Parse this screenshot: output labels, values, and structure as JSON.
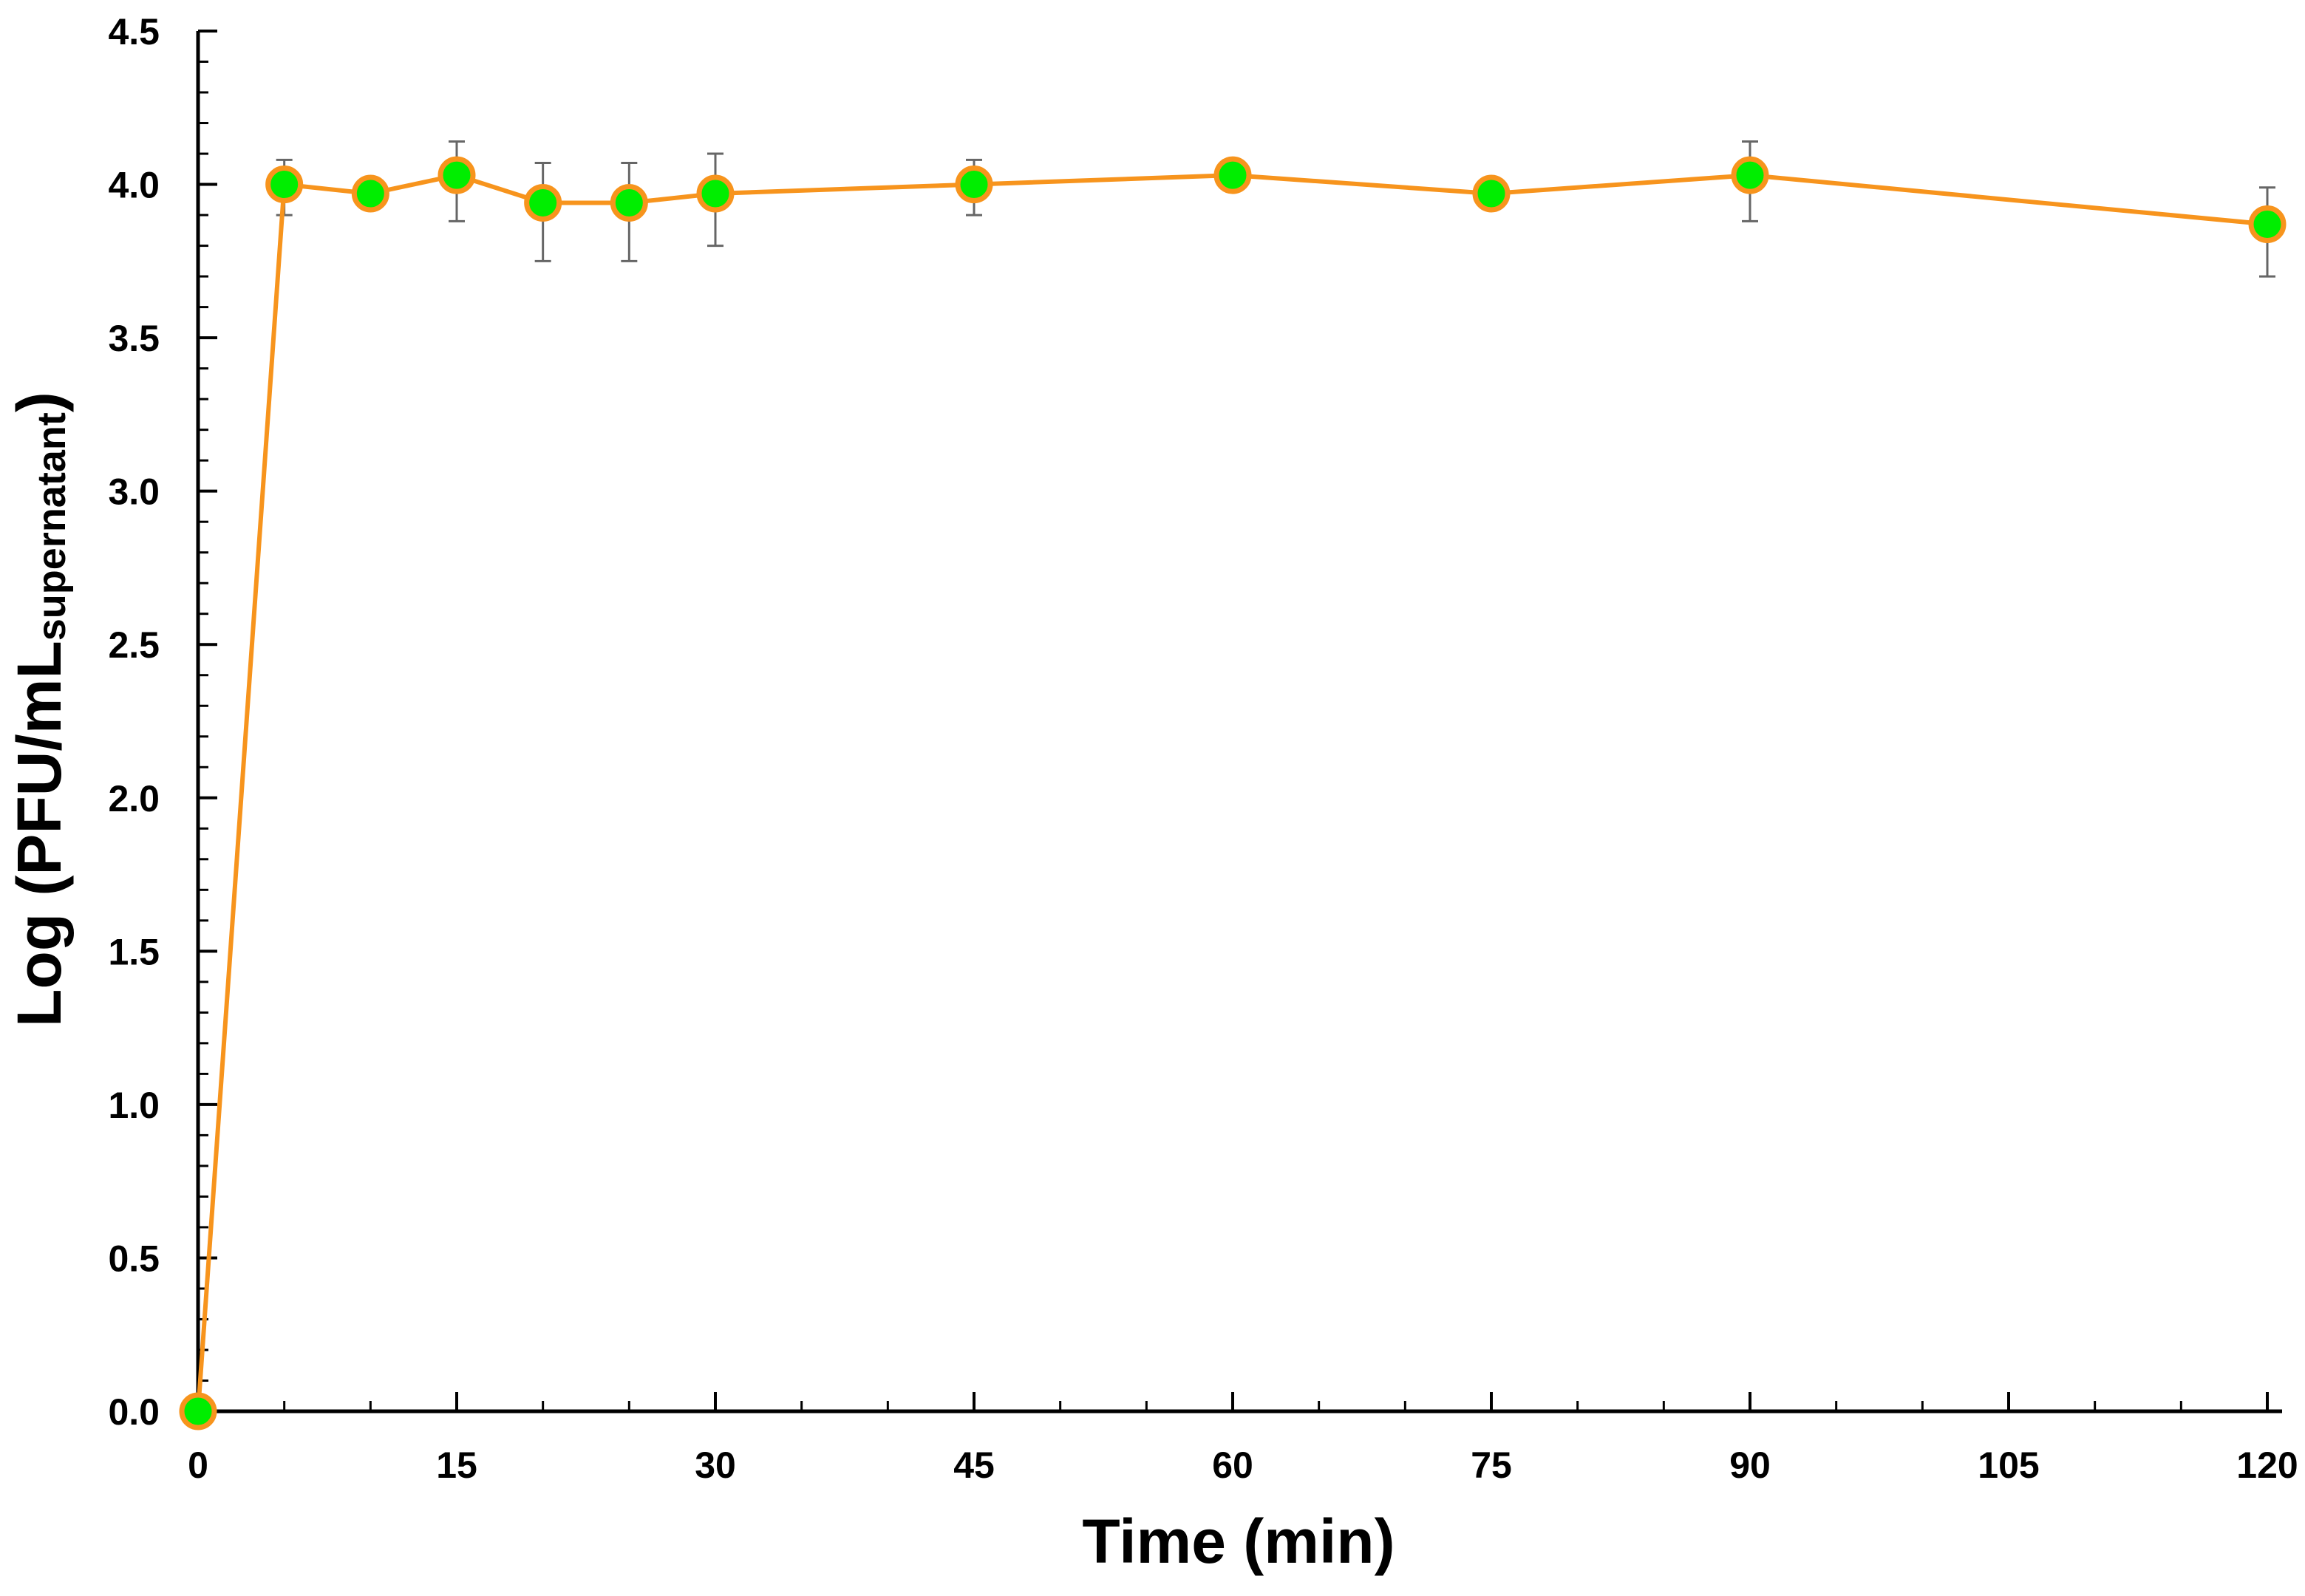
{
  "chart_data": {
    "type": "line",
    "xlabel": "Time (min)",
    "ylabel_main": "Log (PFU/mL",
    "ylabel_sub": "supernatant",
    "ylabel_close": ")",
    "xlim": [
      0,
      120
    ],
    "ylim": [
      0,
      4.5
    ],
    "x_ticks": [
      0,
      15,
      30,
      45,
      60,
      75,
      90,
      105,
      120
    ],
    "x_tick_labels": [
      "0",
      "15",
      "30",
      "45",
      "60",
      "75",
      "90",
      "105",
      "120"
    ],
    "x_minor_step": 5,
    "y_ticks": [
      0,
      0.5,
      1.0,
      1.5,
      2.0,
      2.5,
      3.0,
      3.5,
      4.0,
      4.5
    ],
    "y_tick_labels": [
      "0.0",
      "0.5",
      "1.0",
      "1.5",
      "2.0",
      "2.5",
      "3.0",
      "3.5",
      "4.0",
      "4.5"
    ],
    "y_minor_step": 0.1,
    "grid": false,
    "legend": "none",
    "colors": {
      "line": "#F7941D",
      "marker_fill": "#00EE00",
      "marker_stroke": "#F7941D",
      "error_bar": "#666666",
      "axis": "#000000"
    },
    "series": [
      {
        "x": [
          0,
          5,
          10,
          15,
          20,
          25,
          30,
          45,
          60,
          75,
          90,
          120
        ],
        "y": [
          0.0,
          4.0,
          3.97,
          4.03,
          3.94,
          3.94,
          3.97,
          4.0,
          4.03,
          3.97,
          4.03,
          3.87
        ],
        "err_high": [
          0.0,
          0.08,
          0.0,
          0.11,
          0.13,
          0.13,
          0.13,
          0.08,
          0.0,
          0.0,
          0.11,
          0.12
        ],
        "err_low": [
          0.0,
          0.1,
          0.0,
          0.15,
          0.19,
          0.19,
          0.17,
          0.1,
          0.0,
          0.0,
          0.15,
          0.17
        ]
      }
    ]
  }
}
